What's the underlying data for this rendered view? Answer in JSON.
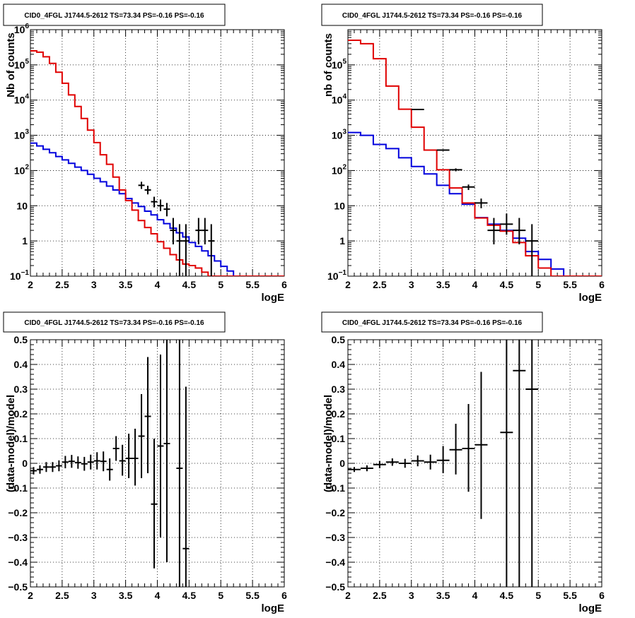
{
  "colors": {
    "data": "#000000",
    "total_model": "#e00000",
    "background_model": "#0000dd",
    "grid": "#000000"
  },
  "chart_data": [
    {
      "type": "line",
      "title": "CID0_4FGL J1744.5-2612 TS=73.34 PS=-0.16 PS=-0.16",
      "xlabel": "logE",
      "ylabel": "Nb of counts",
      "xlim": [
        2,
        6
      ],
      "ylim": [
        0.1,
        1000000
      ],
      "log_y": true,
      "grid": true,
      "x_ticks": [
        {
          "v": 2,
          "label": "2"
        },
        {
          "v": 2.5,
          "label": "2.5"
        },
        {
          "v": 3,
          "label": "3"
        },
        {
          "v": 3.5,
          "label": "3.5"
        },
        {
          "v": 4,
          "label": "4"
        },
        {
          "v": 4.5,
          "label": "4.5"
        },
        {
          "v": 5,
          "label": "5"
        },
        {
          "v": 5.5,
          "label": "5.5"
        },
        {
          "v": 6,
          "label": "6"
        }
      ],
      "y_ticks": [
        {
          "v": 0.1,
          "base": "10",
          "exp": "−1"
        },
        {
          "v": 1,
          "label": "1"
        },
        {
          "v": 10,
          "label": "10"
        },
        {
          "v": 100,
          "base": "10",
          "exp": "2"
        },
        {
          "v": 1000,
          "base": "10",
          "exp": "3"
        },
        {
          "v": 10000,
          "base": "10",
          "exp": "4"
        },
        {
          "v": 100000,
          "base": "10",
          "exp": "5"
        },
        {
          "v": 1000000,
          "base": "10",
          "exp": "6"
        }
      ],
      "bin_edges": [
        2.0,
        2.1,
        2.2,
        2.3,
        2.4,
        2.5,
        2.6,
        2.7,
        2.8,
        2.9,
        3.0,
        3.1,
        3.2,
        3.3,
        3.4,
        3.5,
        3.6,
        3.7,
        3.8,
        3.9,
        4.0,
        4.1,
        4.2,
        4.3,
        4.4,
        4.5,
        4.6,
        4.7,
        4.8,
        4.9,
        5.0,
        5.1,
        5.2,
        5.3,
        5.4,
        5.5,
        5.6,
        5.7,
        5.8,
        5.9,
        6.0
      ],
      "series": [
        {
          "name": "",
          "role": "total_model",
          "color": "#e00000",
          "values": [
            250000,
            230000,
            170000,
            110000,
            62000,
            30000,
            14000,
            6600,
            3000,
            1400,
            620,
            280,
            150,
            65,
            28,
            14,
            7.5,
            3.8,
            2.4,
            1.6,
            0.95,
            0.62,
            0.41,
            0.29,
            0.22,
            0.2,
            0.17,
            0.13,
            0.1,
            0.1,
            0.1,
            0.1,
            0.1,
            0.1,
            0.1,
            0.1,
            0.1,
            0.1,
            0.1,
            0.1
          ]
        },
        {
          "name": "",
          "role": "background_model",
          "color": "#0000dd",
          "values": [
            600,
            500,
            400,
            320,
            250,
            200,
            160,
            125,
            100,
            78,
            60,
            48,
            36,
            28,
            22,
            16,
            12,
            9.5,
            7,
            5.5,
            4,
            3.1,
            2.3,
            1.7,
            1.3,
            0.9,
            0.7,
            0.52,
            0.38,
            0.27,
            0.19,
            0.14,
            0.1,
            0.1,
            0.1,
            0.1,
            0.1,
            0.1,
            0.1,
            0.1
          ]
        }
      ],
      "points": [
        {
          "x": 3.75,
          "y": 38,
          "lo": 30,
          "hi": 48,
          "xerr": 0.05
        },
        {
          "x": 3.85,
          "y": 28,
          "lo": 21,
          "hi": 37,
          "xerr": 0.05
        },
        {
          "x": 3.95,
          "y": 13,
          "lo": 9,
          "hi": 18,
          "xerr": 0.05
        },
        {
          "x": 4.05,
          "y": 10,
          "lo": 7,
          "hi": 15,
          "xerr": 0.05
        },
        {
          "x": 4.15,
          "y": 8,
          "lo": 5,
          "hi": 12,
          "xerr": 0.05
        },
        {
          "x": 4.25,
          "y": 2,
          "lo": 0.8,
          "hi": 4.5,
          "xerr": 0.05
        },
        {
          "x": 4.35,
          "y": 1,
          "lo": 0.1,
          "hi": 3,
          "xerr": 0.05
        },
        {
          "x": 4.45,
          "y": 1,
          "lo": 0.1,
          "hi": 3,
          "xerr": 0.05
        },
        {
          "x": 4.65,
          "y": 2,
          "lo": 0.8,
          "hi": 4.5,
          "xerr": 0.05
        },
        {
          "x": 4.75,
          "y": 2,
          "lo": 0.8,
          "hi": 4.5,
          "xerr": 0.05
        },
        {
          "x": 4.85,
          "y": 1,
          "lo": 0.1,
          "hi": 3,
          "xerr": 0.05
        }
      ]
    },
    {
      "type": "line",
      "title": "CID0_4FGL J1744.5-2612 TS=73.34 PS=-0.16 PS=-0.16",
      "xlabel": "logE",
      "ylabel": "nb of counts",
      "xlim": [
        2,
        6
      ],
      "ylim": [
        0.1,
        1000000
      ],
      "log_y": true,
      "grid": true,
      "x_ticks": [
        {
          "v": 2,
          "label": "2"
        },
        {
          "v": 2.5,
          "label": "2.5"
        },
        {
          "v": 3,
          "label": "3"
        },
        {
          "v": 3.5,
          "label": "3.5"
        },
        {
          "v": 4,
          "label": "4"
        },
        {
          "v": 4.5,
          "label": "4.5"
        },
        {
          "v": 5,
          "label": "5"
        },
        {
          "v": 5.5,
          "label": "5.5"
        },
        {
          "v": 6,
          "label": "6"
        }
      ],
      "y_ticks": [
        {
          "v": 0.1,
          "base": "10",
          "exp": "−1"
        },
        {
          "v": 1,
          "label": "1"
        },
        {
          "v": 10,
          "label": "10"
        },
        {
          "v": 100,
          "base": "10",
          "exp": "2"
        },
        {
          "v": 1000,
          "base": "10",
          "exp": "3"
        },
        {
          "v": 10000,
          "base": "10",
          "exp": "4"
        },
        {
          "v": 100000,
          "base": "10",
          "exp": "5"
        }
      ],
      "bin_edges": [
        2.0,
        2.2,
        2.4,
        2.6,
        2.8,
        3.0,
        3.2,
        3.4,
        3.6,
        3.8,
        4.0,
        4.2,
        4.4,
        4.6,
        4.8,
        5.0,
        5.2,
        5.4,
        5.6,
        5.8,
        6.0
      ],
      "series": [
        {
          "name": "",
          "role": "total_model",
          "color": "#e00000",
          "values": [
            500000,
            400000,
            150000,
            25000,
            5500,
            1700,
            380,
            105,
            32,
            12,
            4.5,
            2.8,
            1.9,
            0.9,
            0.38,
            0.17,
            0.1,
            0.1,
            0.1,
            0.1
          ]
        },
        {
          "name": "",
          "role": "background_model",
          "color": "#0000dd",
          "values": [
            1200,
            1000,
            550,
            420,
            230,
            130,
            80,
            38,
            22,
            11,
            4.6,
            3.0,
            2.0,
            1.2,
            0.5,
            0.3,
            0.16,
            0.1,
            0.1,
            0.1
          ]
        }
      ],
      "points": [
        {
          "x": 3.1,
          "y": 5400,
          "lo": 5200,
          "hi": 5600,
          "xerr": 0.1
        },
        {
          "x": 3.5,
          "y": 380,
          "lo": 360,
          "hi": 400,
          "xerr": 0.1
        },
        {
          "x": 3.7,
          "y": 105,
          "lo": 95,
          "hi": 115,
          "xerr": 0.1
        },
        {
          "x": 3.9,
          "y": 34,
          "lo": 28,
          "hi": 40,
          "xerr": 0.1
        },
        {
          "x": 4.1,
          "y": 12,
          "lo": 8.5,
          "hi": 16,
          "xerr": 0.1
        },
        {
          "x": 4.3,
          "y": 2,
          "lo": 0.8,
          "hi": 4.5,
          "xerr": 0.1
        },
        {
          "x": 4.5,
          "y": 3,
          "lo": 1.5,
          "hi": 6,
          "xerr": 0.1
        },
        {
          "x": 4.7,
          "y": 2,
          "lo": 0.8,
          "hi": 4.5,
          "xerr": 0.1
        },
        {
          "x": 4.9,
          "y": 1,
          "lo": 0.1,
          "hi": 3,
          "xerr": 0.1
        }
      ]
    },
    {
      "type": "scatter",
      "title": "CID0_4FGL J1744.5-2612 TS=73.34 PS=-0.16 PS=-0.16",
      "xlabel": "logE",
      "ylabel": "(data-model)/model",
      "xlim": [
        2,
        6
      ],
      "ylim": [
        -0.5,
        0.5
      ],
      "log_y": false,
      "grid": true,
      "x_ticks": [
        {
          "v": 2,
          "label": "2"
        },
        {
          "v": 2.5,
          "label": "2.5"
        },
        {
          "v": 3,
          "label": "3"
        },
        {
          "v": 3.5,
          "label": "3.5"
        },
        {
          "v": 4,
          "label": "4"
        },
        {
          "v": 4.5,
          "label": "4.5"
        },
        {
          "v": 5,
          "label": "5"
        },
        {
          "v": 5.5,
          "label": "5.5"
        },
        {
          "v": 6,
          "label": "6"
        }
      ],
      "y_ticks": [
        {
          "v": -0.5,
          "label": "−0.5"
        },
        {
          "v": -0.4,
          "label": "−0.4"
        },
        {
          "v": -0.3,
          "label": "−0.3"
        },
        {
          "v": -0.2,
          "label": "−0.2"
        },
        {
          "v": -0.1,
          "label": "−0.1"
        },
        {
          "v": 0,
          "label": "0"
        },
        {
          "v": 0.1,
          "label": "0.1"
        },
        {
          "v": 0.2,
          "label": "0.2"
        },
        {
          "v": 0.3,
          "label": "0.3"
        },
        {
          "v": 0.4,
          "label": "0.4"
        },
        {
          "v": 0.5,
          "label": "0.5"
        }
      ],
      "points": [
        {
          "x": 2.05,
          "y": -0.03,
          "lo": -0.045,
          "hi": -0.015,
          "xerr": 0.05
        },
        {
          "x": 2.15,
          "y": -0.025,
          "lo": -0.042,
          "hi": -0.008,
          "xerr": 0.05
        },
        {
          "x": 2.25,
          "y": -0.015,
          "lo": -0.035,
          "hi": 0.005,
          "xerr": 0.05
        },
        {
          "x": 2.35,
          "y": -0.015,
          "lo": -0.035,
          "hi": 0.005,
          "xerr": 0.05
        },
        {
          "x": 2.45,
          "y": -0.01,
          "lo": -0.032,
          "hi": 0.012,
          "xerr": 0.05
        },
        {
          "x": 2.55,
          "y": 0.005,
          "lo": -0.02,
          "hi": 0.03,
          "xerr": 0.05
        },
        {
          "x": 2.65,
          "y": 0.008,
          "lo": -0.018,
          "hi": 0.034,
          "xerr": 0.05
        },
        {
          "x": 2.75,
          "y": 0.003,
          "lo": -0.022,
          "hi": 0.028,
          "xerr": 0.05
        },
        {
          "x": 2.85,
          "y": -0.002,
          "lo": -0.03,
          "hi": 0.026,
          "xerr": 0.05
        },
        {
          "x": 2.95,
          "y": 0.005,
          "lo": -0.025,
          "hi": 0.035,
          "xerr": 0.05
        },
        {
          "x": 3.05,
          "y": 0.01,
          "lo": -0.025,
          "hi": 0.045,
          "xerr": 0.05
        },
        {
          "x": 3.15,
          "y": 0.008,
          "lo": -0.032,
          "hi": 0.048,
          "xerr": 0.05
        },
        {
          "x": 3.25,
          "y": -0.025,
          "lo": -0.07,
          "hi": 0.02,
          "xerr": 0.05
        },
        {
          "x": 3.35,
          "y": 0.06,
          "lo": 0.01,
          "hi": 0.11,
          "xerr": 0.05
        },
        {
          "x": 3.45,
          "y": 0.01,
          "lo": -0.05,
          "hi": 0.075,
          "xerr": 0.05
        },
        {
          "x": 3.55,
          "y": 0.02,
          "lo": -0.06,
          "hi": 0.12,
          "xerr": 0.05
        },
        {
          "x": 3.65,
          "y": 0.02,
          "lo": -0.09,
          "hi": 0.14,
          "xerr": 0.05
        },
        {
          "x": 3.75,
          "y": 0.11,
          "lo": -0.06,
          "hi": 0.28,
          "xerr": 0.05
        },
        {
          "x": 3.85,
          "y": 0.19,
          "lo": -0.04,
          "hi": 0.43,
          "xerr": 0.05
        },
        {
          "x": 3.95,
          "y": -0.165,
          "lo": -0.425,
          "hi": 0.1,
          "xerr": 0.05
        },
        {
          "x": 4.05,
          "y": 0.07,
          "lo": -0.3,
          "hi": 0.44,
          "xerr": 0.05
        },
        {
          "x": 4.15,
          "y": 0.08,
          "lo": -0.4,
          "hi": 0.5,
          "xerr": 0.05
        },
        {
          "x": 4.35,
          "y": -0.02,
          "lo": -0.5,
          "hi": 0.5,
          "xerr": 0.05
        },
        {
          "x": 4.45,
          "y": -0.345,
          "lo": -0.5,
          "hi": 0.31,
          "xerr": 0.05
        }
      ]
    },
    {
      "type": "scatter",
      "title": "CID0_4FGL J1744.5-2612 TS=73.34 PS=-0.16 PS=-0.16",
      "xlabel": "logE",
      "ylabel": "(data-model)/model",
      "xlim": [
        2,
        6
      ],
      "ylim": [
        -0.5,
        0.5
      ],
      "log_y": false,
      "grid": true,
      "x_ticks": [
        {
          "v": 2,
          "label": "2"
        },
        {
          "v": 2.5,
          "label": "2.5"
        },
        {
          "v": 3,
          "label": "3"
        },
        {
          "v": 3.5,
          "label": "3.5"
        },
        {
          "v": 4,
          "label": "4"
        },
        {
          "v": 4.5,
          "label": "4.5"
        },
        {
          "v": 5,
          "label": "5"
        },
        {
          "v": 5.5,
          "label": "5.5"
        },
        {
          "v": 6,
          "label": "6"
        }
      ],
      "y_ticks": [
        {
          "v": -0.5,
          "label": "−0.5"
        },
        {
          "v": -0.4,
          "label": "−0.4"
        },
        {
          "v": -0.3,
          "label": "−0.3"
        },
        {
          "v": -0.2,
          "label": "−0.2"
        },
        {
          "v": -0.1,
          "label": "−0.1"
        },
        {
          "v": 0,
          "label": "0"
        },
        {
          "v": 0.1,
          "label": "0.1"
        },
        {
          "v": 0.2,
          "label": "0.2"
        },
        {
          "v": 0.3,
          "label": "0.3"
        },
        {
          "v": 0.4,
          "label": "0.4"
        },
        {
          "v": 0.5,
          "label": "0.5"
        }
      ],
      "points": [
        {
          "x": 2.1,
          "y": -0.025,
          "lo": -0.035,
          "hi": -0.015,
          "xerr": 0.1
        },
        {
          "x": 2.3,
          "y": -0.02,
          "lo": -0.032,
          "hi": -0.008,
          "xerr": 0.1
        },
        {
          "x": 2.5,
          "y": -0.005,
          "lo": -0.02,
          "hi": 0.01,
          "xerr": 0.1
        },
        {
          "x": 2.7,
          "y": 0.005,
          "lo": -0.01,
          "hi": 0.02,
          "xerr": 0.1
        },
        {
          "x": 2.9,
          "y": 0.0,
          "lo": -0.018,
          "hi": 0.018,
          "xerr": 0.1
        },
        {
          "x": 3.1,
          "y": 0.01,
          "lo": -0.012,
          "hi": 0.032,
          "xerr": 0.1
        },
        {
          "x": 3.3,
          "y": 0.005,
          "lo": -0.025,
          "hi": 0.035,
          "xerr": 0.1
        },
        {
          "x": 3.5,
          "y": 0.012,
          "lo": -0.04,
          "hi": 0.07,
          "xerr": 0.1
        },
        {
          "x": 3.7,
          "y": 0.055,
          "lo": -0.045,
          "hi": 0.16,
          "xerr": 0.1
        },
        {
          "x": 3.9,
          "y": 0.06,
          "lo": -0.115,
          "hi": 0.24,
          "xerr": 0.1
        },
        {
          "x": 4.1,
          "y": 0.075,
          "lo": -0.225,
          "hi": 0.37,
          "xerr": 0.1
        },
        {
          "x": 4.5,
          "y": 0.125,
          "lo": -0.5,
          "hi": 0.5,
          "xerr": 0.1
        },
        {
          "x": 4.7,
          "y": 0.375,
          "lo": -0.5,
          "hi": 0.5,
          "xerr": 0.1
        },
        {
          "x": 4.9,
          "y": 0.3,
          "lo": -0.5,
          "hi": 0.5,
          "xerr": 0.1
        }
      ]
    }
  ]
}
